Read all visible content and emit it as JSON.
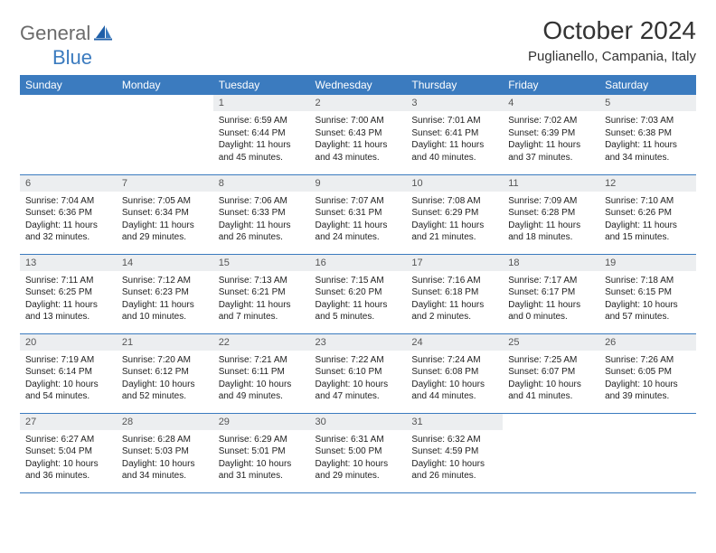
{
  "logo": {
    "general": "General",
    "blue": "Blue"
  },
  "title": "October 2024",
  "location": "Puglianello, Campania, Italy",
  "colors": {
    "accent": "#3b7bbf",
    "header_bg": "#3b7bbf",
    "header_text": "#ffffff",
    "daynum_bg": "#eceef0",
    "border": "#3b7bbf",
    "logo_gray": "#6b6b6b",
    "logo_blue": "#3b7bbf"
  },
  "week_header": [
    "Sunday",
    "Monday",
    "Tuesday",
    "Wednesday",
    "Thursday",
    "Friday",
    "Saturday"
  ],
  "weeks": [
    [
      {
        "day": "",
        "sunrise": "",
        "sunset": "",
        "daylight": ""
      },
      {
        "day": "",
        "sunrise": "",
        "sunset": "",
        "daylight": ""
      },
      {
        "day": "1",
        "sunrise": "Sunrise: 6:59 AM",
        "sunset": "Sunset: 6:44 PM",
        "daylight": "Daylight: 11 hours and 45 minutes."
      },
      {
        "day": "2",
        "sunrise": "Sunrise: 7:00 AM",
        "sunset": "Sunset: 6:43 PM",
        "daylight": "Daylight: 11 hours and 43 minutes."
      },
      {
        "day": "3",
        "sunrise": "Sunrise: 7:01 AM",
        "sunset": "Sunset: 6:41 PM",
        "daylight": "Daylight: 11 hours and 40 minutes."
      },
      {
        "day": "4",
        "sunrise": "Sunrise: 7:02 AM",
        "sunset": "Sunset: 6:39 PM",
        "daylight": "Daylight: 11 hours and 37 minutes."
      },
      {
        "day": "5",
        "sunrise": "Sunrise: 7:03 AM",
        "sunset": "Sunset: 6:38 PM",
        "daylight": "Daylight: 11 hours and 34 minutes."
      }
    ],
    [
      {
        "day": "6",
        "sunrise": "Sunrise: 7:04 AM",
        "sunset": "Sunset: 6:36 PM",
        "daylight": "Daylight: 11 hours and 32 minutes."
      },
      {
        "day": "7",
        "sunrise": "Sunrise: 7:05 AM",
        "sunset": "Sunset: 6:34 PM",
        "daylight": "Daylight: 11 hours and 29 minutes."
      },
      {
        "day": "8",
        "sunrise": "Sunrise: 7:06 AM",
        "sunset": "Sunset: 6:33 PM",
        "daylight": "Daylight: 11 hours and 26 minutes."
      },
      {
        "day": "9",
        "sunrise": "Sunrise: 7:07 AM",
        "sunset": "Sunset: 6:31 PM",
        "daylight": "Daylight: 11 hours and 24 minutes."
      },
      {
        "day": "10",
        "sunrise": "Sunrise: 7:08 AM",
        "sunset": "Sunset: 6:29 PM",
        "daylight": "Daylight: 11 hours and 21 minutes."
      },
      {
        "day": "11",
        "sunrise": "Sunrise: 7:09 AM",
        "sunset": "Sunset: 6:28 PM",
        "daylight": "Daylight: 11 hours and 18 minutes."
      },
      {
        "day": "12",
        "sunrise": "Sunrise: 7:10 AM",
        "sunset": "Sunset: 6:26 PM",
        "daylight": "Daylight: 11 hours and 15 minutes."
      }
    ],
    [
      {
        "day": "13",
        "sunrise": "Sunrise: 7:11 AM",
        "sunset": "Sunset: 6:25 PM",
        "daylight": "Daylight: 11 hours and 13 minutes."
      },
      {
        "day": "14",
        "sunrise": "Sunrise: 7:12 AM",
        "sunset": "Sunset: 6:23 PM",
        "daylight": "Daylight: 11 hours and 10 minutes."
      },
      {
        "day": "15",
        "sunrise": "Sunrise: 7:13 AM",
        "sunset": "Sunset: 6:21 PM",
        "daylight": "Daylight: 11 hours and 7 minutes."
      },
      {
        "day": "16",
        "sunrise": "Sunrise: 7:15 AM",
        "sunset": "Sunset: 6:20 PM",
        "daylight": "Daylight: 11 hours and 5 minutes."
      },
      {
        "day": "17",
        "sunrise": "Sunrise: 7:16 AM",
        "sunset": "Sunset: 6:18 PM",
        "daylight": "Daylight: 11 hours and 2 minutes."
      },
      {
        "day": "18",
        "sunrise": "Sunrise: 7:17 AM",
        "sunset": "Sunset: 6:17 PM",
        "daylight": "Daylight: 11 hours and 0 minutes."
      },
      {
        "day": "19",
        "sunrise": "Sunrise: 7:18 AM",
        "sunset": "Sunset: 6:15 PM",
        "daylight": "Daylight: 10 hours and 57 minutes."
      }
    ],
    [
      {
        "day": "20",
        "sunrise": "Sunrise: 7:19 AM",
        "sunset": "Sunset: 6:14 PM",
        "daylight": "Daylight: 10 hours and 54 minutes."
      },
      {
        "day": "21",
        "sunrise": "Sunrise: 7:20 AM",
        "sunset": "Sunset: 6:12 PM",
        "daylight": "Daylight: 10 hours and 52 minutes."
      },
      {
        "day": "22",
        "sunrise": "Sunrise: 7:21 AM",
        "sunset": "Sunset: 6:11 PM",
        "daylight": "Daylight: 10 hours and 49 minutes."
      },
      {
        "day": "23",
        "sunrise": "Sunrise: 7:22 AM",
        "sunset": "Sunset: 6:10 PM",
        "daylight": "Daylight: 10 hours and 47 minutes."
      },
      {
        "day": "24",
        "sunrise": "Sunrise: 7:24 AM",
        "sunset": "Sunset: 6:08 PM",
        "daylight": "Daylight: 10 hours and 44 minutes."
      },
      {
        "day": "25",
        "sunrise": "Sunrise: 7:25 AM",
        "sunset": "Sunset: 6:07 PM",
        "daylight": "Daylight: 10 hours and 41 minutes."
      },
      {
        "day": "26",
        "sunrise": "Sunrise: 7:26 AM",
        "sunset": "Sunset: 6:05 PM",
        "daylight": "Daylight: 10 hours and 39 minutes."
      }
    ],
    [
      {
        "day": "27",
        "sunrise": "Sunrise: 6:27 AM",
        "sunset": "Sunset: 5:04 PM",
        "daylight": "Daylight: 10 hours and 36 minutes."
      },
      {
        "day": "28",
        "sunrise": "Sunrise: 6:28 AM",
        "sunset": "Sunset: 5:03 PM",
        "daylight": "Daylight: 10 hours and 34 minutes."
      },
      {
        "day": "29",
        "sunrise": "Sunrise: 6:29 AM",
        "sunset": "Sunset: 5:01 PM",
        "daylight": "Daylight: 10 hours and 31 minutes."
      },
      {
        "day": "30",
        "sunrise": "Sunrise: 6:31 AM",
        "sunset": "Sunset: 5:00 PM",
        "daylight": "Daylight: 10 hours and 29 minutes."
      },
      {
        "day": "31",
        "sunrise": "Sunrise: 6:32 AM",
        "sunset": "Sunset: 4:59 PM",
        "daylight": "Daylight: 10 hours and 26 minutes."
      },
      {
        "day": "",
        "sunrise": "",
        "sunset": "",
        "daylight": ""
      },
      {
        "day": "",
        "sunrise": "",
        "sunset": "",
        "daylight": ""
      }
    ]
  ]
}
